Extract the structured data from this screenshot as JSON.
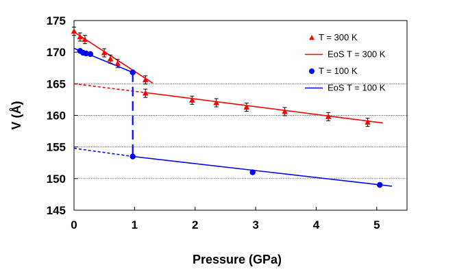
{
  "chart_data": {
    "type": "scatter",
    "xlabel": "Pressure (GPa)",
    "ylabel": "V (Å)",
    "xlim": [
      0,
      5.5
    ],
    "ylim": [
      145,
      175
    ],
    "xticks": [
      "0",
      "1",
      "2",
      "3",
      "4",
      "5"
    ],
    "yticks": [
      "145",
      "150",
      "155",
      "160",
      "165",
      "170",
      "175"
    ],
    "gridlines_y": [
      150,
      155,
      160,
      165
    ],
    "legend_position": "top-right",
    "colors": {
      "red": "#ff0000",
      "blue": "#0000ff"
    },
    "series": [
      {
        "name": "T = 300 K",
        "kind": "markers",
        "marker": "triangle",
        "color": "#ff0000",
        "points": [
          {
            "x": 0.0,
            "y": 173.3
          },
          {
            "x": 0.1,
            "y": 172.4
          },
          {
            "x": 0.18,
            "y": 172.0
          },
          {
            "x": 0.5,
            "y": 169.9
          },
          {
            "x": 0.6,
            "y": 168.9
          },
          {
            "x": 0.72,
            "y": 168.2
          },
          {
            "x": 1.18,
            "y": 165.6
          },
          {
            "x": 1.18,
            "y": 163.5
          },
          {
            "x": 1.95,
            "y": 162.4
          },
          {
            "x": 2.35,
            "y": 162.0
          },
          {
            "x": 2.85,
            "y": 161.3
          },
          {
            "x": 3.48,
            "y": 160.6
          },
          {
            "x": 4.2,
            "y": 159.8
          },
          {
            "x": 4.85,
            "y": 158.9
          }
        ]
      },
      {
        "name": "EoS T = 300 K",
        "kind": "lines",
        "color": "#ff0000",
        "segments": [
          {
            "points": [
              [
                0.0,
                173.2
              ],
              [
                1.3,
                165.1
              ]
            ],
            "dash": false
          },
          {
            "points": [
              [
                0.0,
                165.0
              ],
              [
                1.18,
                163.6
              ]
            ],
            "dash": true
          },
          {
            "points": [
              [
                1.18,
                163.6
              ],
              [
                5.1,
                158.8
              ]
            ],
            "dash": false
          }
        ]
      },
      {
        "name": "T = 100 K",
        "kind": "markers",
        "marker": "circle",
        "color": "#0000ff",
        "points": [
          {
            "x": 0.1,
            "y": 170.2
          },
          {
            "x": 0.15,
            "y": 169.9
          },
          {
            "x": 0.2,
            "y": 169.8
          },
          {
            "x": 0.27,
            "y": 169.7
          },
          {
            "x": 0.97,
            "y": 166.8
          },
          {
            "x": 0.97,
            "y": 153.5
          },
          {
            "x": 2.95,
            "y": 151.0
          },
          {
            "x": 5.05,
            "y": 149.0
          }
        ]
      },
      {
        "name": "EoS T = 100 K",
        "kind": "lines",
        "color": "#0000ff",
        "segments": [
          {
            "points": [
              [
                0.0,
                170.6
              ],
              [
                0.97,
                166.8
              ]
            ],
            "dash": false
          },
          {
            "points": [
              [
                0.97,
                166.8
              ],
              [
                0.97,
                153.5
              ]
            ],
            "dash": "long"
          },
          {
            "points": [
              [
                0.0,
                154.8
              ],
              [
                0.97,
                153.5
              ]
            ],
            "dash": true
          },
          {
            "points": [
              [
                0.97,
                153.5
              ],
              [
                5.25,
                148.8
              ]
            ],
            "dash": false
          }
        ]
      }
    ]
  }
}
